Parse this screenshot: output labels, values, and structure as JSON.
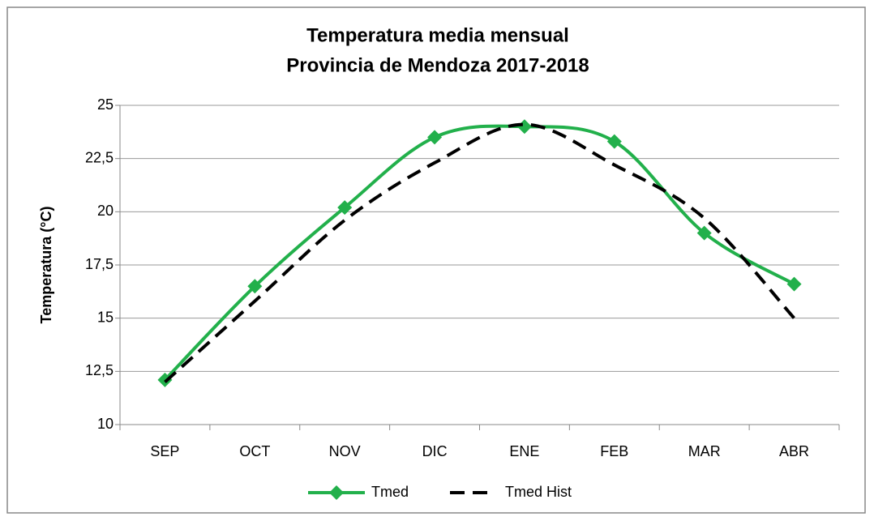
{
  "chart_data": {
    "type": "line",
    "title": [
      "Temperatura media mensual",
      "Provincia de Mendoza 2017-2018"
    ],
    "y_label": "Temperatura (°C)",
    "categories": [
      "SEP",
      "OCT",
      "NOV",
      "DIC",
      "ENE",
      "FEB",
      "MAR",
      "ABR"
    ],
    "series": [
      {
        "name": "Tmed",
        "color": "#22b04b",
        "style": "solid",
        "marker": "diamond",
        "values": [
          12.1,
          16.5,
          20.2,
          23.5,
          24.0,
          23.3,
          19.0,
          16.6
        ]
      },
      {
        "name": "Tmed Hist",
        "color": "#000000",
        "style": "dashed",
        "values": [
          12.0,
          15.8,
          19.6,
          22.3,
          24.1,
          22.2,
          19.7,
          15.0
        ]
      }
    ],
    "ylim": [
      10,
      25
    ],
    "yticks": [
      10,
      {
        "value": 12.5,
        "label": "12,5"
      },
      15,
      {
        "value": 17.5,
        "label": "17,5"
      },
      20,
      {
        "value": 22.5,
        "label": "22,5"
      },
      25
    ],
    "grid": true,
    "smooth": true,
    "legend": "bottom"
  }
}
